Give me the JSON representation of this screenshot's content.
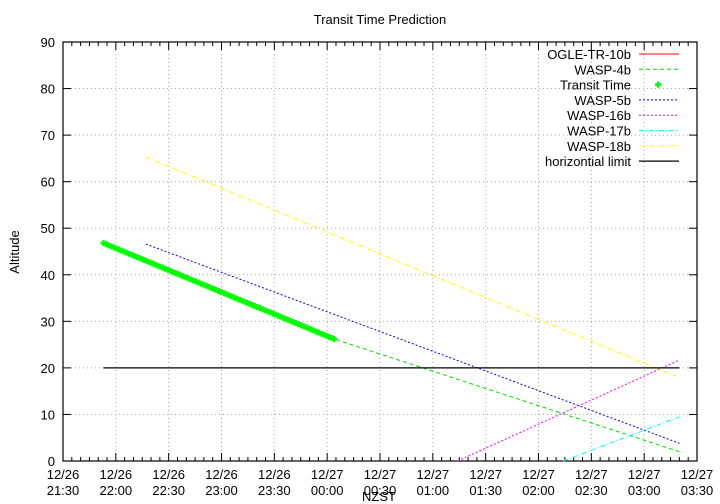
{
  "chart_data": {
    "type": "line",
    "title": "Transit Time Prediction",
    "xlabel": "NZST",
    "ylabel": "Altitude",
    "ylim": [
      0,
      90
    ],
    "yticks": [
      0,
      10,
      20,
      30,
      40,
      50,
      60,
      70,
      80,
      90
    ],
    "xticks": [
      {
        "date": "12/26",
        "time": "21:30"
      },
      {
        "date": "12/26",
        "time": "22:00"
      },
      {
        "date": "12/26",
        "time": "22:30"
      },
      {
        "date": "12/26",
        "time": "23:00"
      },
      {
        "date": "12/26",
        "time": "23:30"
      },
      {
        "date": "12/27",
        "time": "00:00"
      },
      {
        "date": "12/27",
        "time": "00:30"
      },
      {
        "date": "12/27",
        "time": "01:00"
      },
      {
        "date": "12/27",
        "time": "01:30"
      },
      {
        "date": "12/27",
        "time": "02:00"
      },
      {
        "date": "12/27",
        "time": "02:30"
      },
      {
        "date": "12/27",
        "time": "03:00"
      },
      {
        "date": "12/27",
        "time": "03:30"
      }
    ],
    "xlim_minutes_from_2130": [
      0,
      360
    ],
    "grid": true,
    "legend_position": "top-right",
    "series": [
      {
        "name": "OGLE-TR-10b",
        "color": "#ff0000",
        "style": "solid",
        "points": []
      },
      {
        "name": "WASP-4b",
        "color": "#00dd00",
        "style": "dashed",
        "points": [
          [
            23,
            46.8
          ],
          [
            154,
            26.2
          ],
          [
            350,
            2.0
          ]
        ]
      },
      {
        "name": "Transit Time",
        "color": "#00ff00",
        "style": "points",
        "points": [
          [
            23,
            46.8
          ],
          [
            154,
            26.2
          ]
        ]
      },
      {
        "name": "WASP-5b",
        "color": "#0000ff",
        "style": "dotted",
        "points": [
          [
            47,
            46.6
          ],
          [
            350,
            3.8
          ]
        ]
      },
      {
        "name": "WASP-16b",
        "color": "#ff00ff",
        "style": "dotted",
        "points": [
          [
            224,
            0
          ],
          [
            350,
            21.7
          ]
        ]
      },
      {
        "name": "WASP-17b",
        "color": "#00ffff",
        "style": "dash-dot",
        "points": [
          [
            284,
            0
          ],
          [
            350,
            9.5
          ]
        ]
      },
      {
        "name": "WASP-18b",
        "color": "#ffff00",
        "style": "dash-dot",
        "points": [
          [
            47,
            65.3
          ],
          [
            348,
            18.2
          ]
        ]
      },
      {
        "name": "horizontial limit",
        "color": "#000000",
        "style": "solid",
        "points": [
          [
            23,
            20
          ],
          [
            350,
            20
          ]
        ]
      }
    ]
  }
}
